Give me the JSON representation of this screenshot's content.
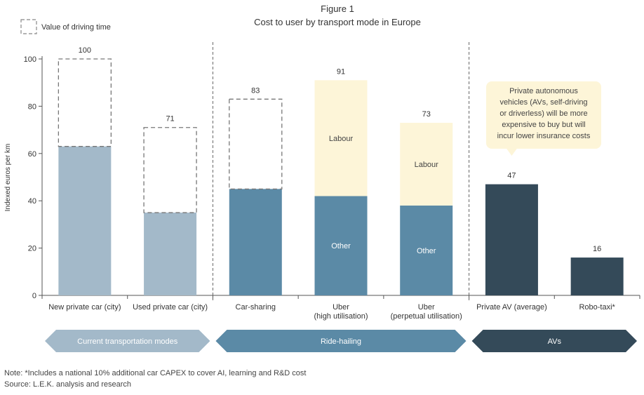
{
  "header": {
    "figure_label": "Figure 1",
    "title": "Cost to user by transport mode in Europe"
  },
  "legend": {
    "dashed_label": "Value of driving time",
    "placement": "top-left"
  },
  "chart_data": {
    "type": "bar",
    "ylabel": "Indexed euros per km",
    "ylim": [
      0,
      100
    ],
    "yticks": [
      "0",
      "20",
      "40",
      "60",
      "80",
      "100"
    ],
    "grid": false,
    "categories": [
      {
        "label": "New private car (city)",
        "sub": ""
      },
      {
        "label": "Used private car (city)",
        "sub": ""
      },
      {
        "label": "Car-sharing",
        "sub": ""
      },
      {
        "label": "Uber",
        "sub": "(high utilisation)"
      },
      {
        "label": "Uber",
        "sub": "(perpetual utilisation)"
      },
      {
        "label": "Private AV (average)",
        "sub": ""
      },
      {
        "label": "Robo-taxi*",
        "sub": ""
      }
    ],
    "bars": [
      {
        "total": 100,
        "total_label": "100",
        "segments": [
          {
            "name": "solid",
            "value": 63,
            "color": "#a3b9c9",
            "label": ""
          },
          {
            "name": "Value of driving time",
            "value": 37,
            "dashed": true,
            "label": ""
          }
        ]
      },
      {
        "total": 71,
        "total_label": "71",
        "segments": [
          {
            "name": "solid",
            "value": 35,
            "color": "#a3b9c9",
            "label": ""
          },
          {
            "name": "Value of driving time",
            "value": 36,
            "dashed": true,
            "label": ""
          }
        ]
      },
      {
        "total": 83,
        "total_label": "83",
        "segments": [
          {
            "name": "solid",
            "value": 45,
            "color": "#5b8aa6",
            "label": ""
          },
          {
            "name": "Value of driving time",
            "value": 38,
            "dashed": true,
            "label": ""
          }
        ]
      },
      {
        "total": 91,
        "total_label": "91",
        "segments": [
          {
            "name": "Other",
            "value": 42,
            "color": "#5b8aa6",
            "label": "Other"
          },
          {
            "name": "Labour",
            "value": 49,
            "color": "#fdf5d8",
            "label": "Labour"
          }
        ]
      },
      {
        "total": 73,
        "total_label": "73",
        "segments": [
          {
            "name": "Other",
            "value": 38,
            "color": "#5b8aa6",
            "label": "Other"
          },
          {
            "name": "Labour",
            "value": 35,
            "color": "#fdf5d8",
            "label": "Labour"
          }
        ]
      },
      {
        "total": 47,
        "total_label": "47",
        "segments": [
          {
            "name": "solid",
            "value": 47,
            "color": "#344a59",
            "label": ""
          }
        ]
      },
      {
        "total": 16,
        "total_label": "16",
        "segments": [
          {
            "name": "solid",
            "value": 16,
            "color": "#344a59",
            "label": ""
          }
        ]
      }
    ],
    "groups": [
      {
        "label": "Current transportation modes",
        "first": 0,
        "last": 1,
        "color": "#a3b9c9"
      },
      {
        "label": "Ride-hailing",
        "first": 2,
        "last": 4,
        "color": "#5b8aa6"
      },
      {
        "label": "AVs",
        "first": 5,
        "last": 6,
        "color": "#344a59"
      }
    ],
    "annotation": {
      "lines": [
        "Private autonomous",
        "vehicles (AVs, self-driving",
        "or driverless) will be more",
        "expensive to buy but will",
        "incur lower insurance costs"
      ],
      "fill": "#fdf5d8"
    }
  },
  "footer": {
    "note": "Note: *Includes a national 10% additional car CAPEX to cover AI, learning and R&D cost",
    "source": "Source: L.E.K. analysis and research"
  }
}
